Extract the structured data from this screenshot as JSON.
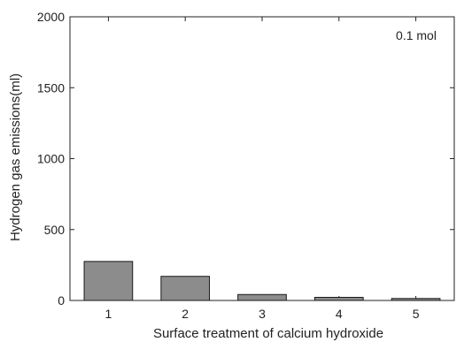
{
  "chart_data": {
    "type": "bar",
    "categories": [
      "1",
      "2",
      "3",
      "4",
      "5"
    ],
    "values": [
      275,
      170,
      42,
      22,
      14
    ],
    "ylim": [
      0,
      2000
    ],
    "yticks": [
      "0",
      "500",
      "1000",
      "1500",
      "2000"
    ],
    "xlabel": "Surface treatment of calcium hydroxide",
    "ylabel": "Hydrogen gas emissions(ml)",
    "annotation": "0.1 mol",
    "grid": false,
    "legend": "none",
    "colors": {
      "bar_fill": "#8c8c8c",
      "bar_stroke": "#1a1a1a",
      "axis": "#222222"
    }
  }
}
